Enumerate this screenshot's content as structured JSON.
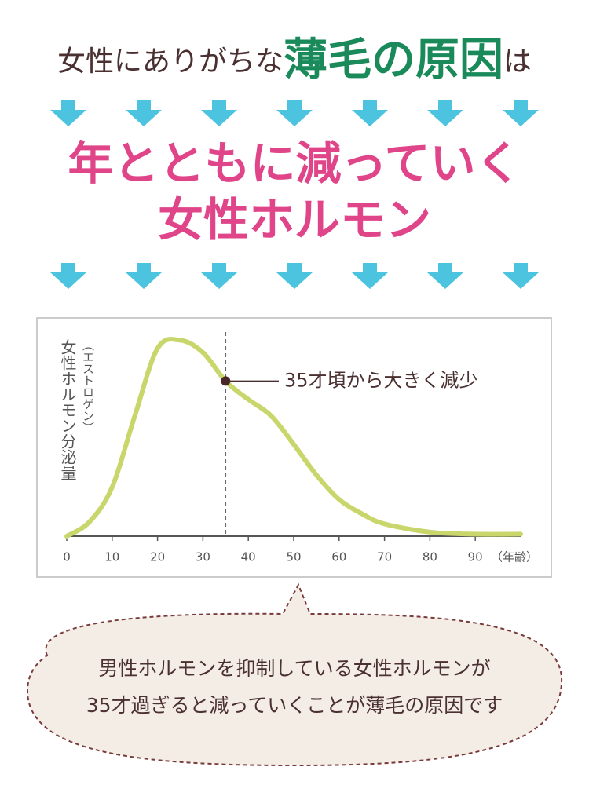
{
  "header": {
    "lead_prefix": "女性にありがちな",
    "lead_emphasis": "薄毛の原因",
    "lead_suffix": "は",
    "title_lines": [
      "年とともに減っていく",
      "女性ホルモン"
    ]
  },
  "chart_data": {
    "type": "line",
    "y_label_note": "（エストロゲン）",
    "y_label": "女性ホルモン分泌量",
    "x": [
      0,
      5,
      10,
      15,
      20,
      25,
      30,
      35,
      40,
      45,
      50,
      55,
      60,
      65,
      70,
      80,
      90,
      100
    ],
    "series": [
      {
        "color": "#c9d66b",
        "values": [
          0,
          7,
          24,
          59,
          92,
          96,
          90,
          76,
          67,
          59,
          45,
          30,
          18,
          11,
          6,
          2,
          1,
          1
        ]
      }
    ],
    "xlim": [
      0,
      100
    ],
    "ylim": [
      0,
      100
    ],
    "xticks": [
      0,
      10,
      20,
      30,
      40,
      50,
      60,
      70,
      80,
      90
    ],
    "x_unit_label": "（年齢）",
    "annotation": {
      "x": 35,
      "text": "35才頃から大きく減少"
    }
  },
  "bubble": {
    "lines": [
      "男性ホルモンを抑制している女性ホルモンが",
      "35才過ぎると減っていくことが薄毛の原因です"
    ]
  }
}
